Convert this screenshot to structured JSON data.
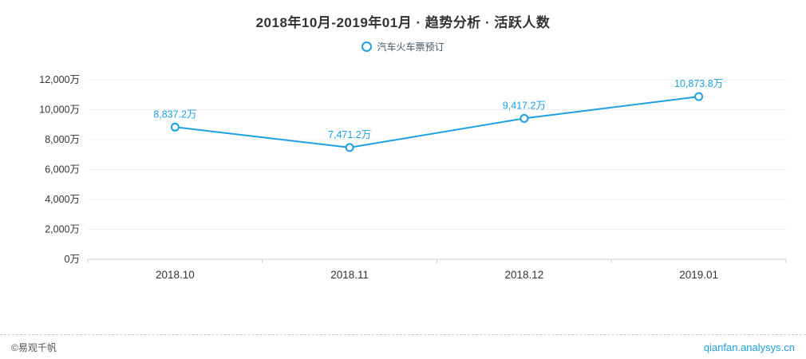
{
  "header": {
    "title": "2018年10月-2019年01月 · 趋势分析 · 活跃人数"
  },
  "legend": {
    "label": "汽车火车票预订"
  },
  "chart_data": {
    "type": "line",
    "title": "2018年10月-2019年01月 · 趋势分析 · 活跃人数",
    "series_name": "汽车火车票预订",
    "categories": [
      "2018.10",
      "2018.11",
      "2018.12",
      "2019.01"
    ],
    "values": [
      8837.2,
      7471.2,
      9417.2,
      10873.8
    ],
    "value_labels": [
      "8,837.2万",
      "7,471.2万",
      "9,417.2万",
      "10,873.8万"
    ],
    "unit": "万",
    "xlabel": "",
    "ylabel": "",
    "ylim": [
      0,
      12000
    ],
    "yticks": [
      0,
      2000,
      4000,
      6000,
      8000,
      10000,
      12000
    ],
    "ytick_labels": [
      "0万",
      "2,000万",
      "4,000万",
      "6,000万",
      "8,000万",
      "10,000万",
      "12,000万"
    ],
    "grid": "light-horizontal",
    "legend_position": "top-center",
    "line_color": "#1ba1e2",
    "marker": "hollow-circle"
  },
  "footer": {
    "copyright": "©易观千帆",
    "site": "qianfan.analysys.cn"
  }
}
